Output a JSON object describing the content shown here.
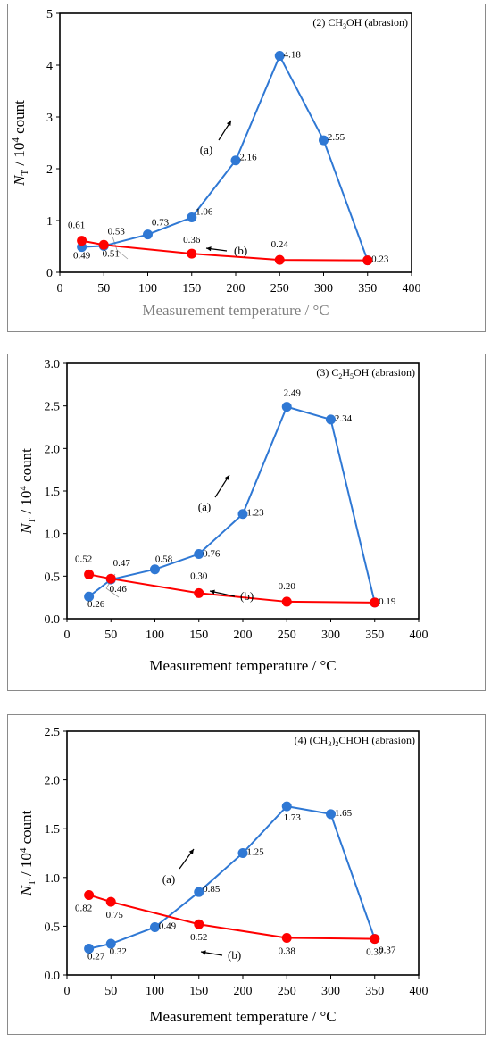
{
  "colors": {
    "series_a": "#2f78d4",
    "series_b": "#ff0000",
    "axis": "#000000",
    "xlabel": "#7f7f7f"
  },
  "chart_data": [
    {
      "type": "line",
      "title": "(2) CH3OH (abrasion)",
      "title_main": "(2) CH",
      "title_sub1": "3",
      "title_rest": "OH (abrasion)",
      "xlabel": "Measurement temperature / °C",
      "ylabel_main": "N",
      "ylabel_sub": "T",
      "ylabel_rest": "/ 10",
      "ylabel_sup": "4",
      "ylabel_end": " count",
      "xlim": [
        0,
        400
      ],
      "ylim": [
        0,
        5
      ],
      "xticks": [
        "0",
        "50",
        "100",
        "150",
        "200",
        "250",
        "300",
        "350",
        "400"
      ],
      "yticks": [
        "0",
        "1",
        "2",
        "3",
        "4",
        "5"
      ],
      "series": [
        {
          "name": "(a)",
          "x": [
            25,
            50,
            100,
            150,
            200,
            250,
            300,
            350
          ],
          "y": [
            0.49,
            0.51,
            0.73,
            1.06,
            2.16,
            4.18,
            2.55,
            0.23
          ],
          "labels": [
            "0.49",
            "0.51",
            "0.73",
            "1.06",
            "2.16",
            "4.18",
            "2.55",
            "0.23"
          ]
        },
        {
          "name": "(b)",
          "x": [
            25,
            50,
            150,
            250,
            350
          ],
          "y": [
            0.61,
            0.53,
            0.36,
            0.24,
            0.23
          ],
          "labels": [
            "0.61",
            "0.53",
            "0.36",
            "0.24",
            ""
          ]
        }
      ],
      "annotations": [
        "(a)",
        "(b)"
      ]
    },
    {
      "type": "line",
      "title": "(3) C2H5OH (abrasion)",
      "title_main": "(3) C",
      "title_sub1": "2",
      "title_mid": "H",
      "title_sub2": "5",
      "title_rest": "OH (abrasion)",
      "xlabel": "Measurement temperature / °C",
      "ylabel_main": "N",
      "ylabel_sub": "T",
      "ylabel_rest": "/ 10",
      "ylabel_sup": "4",
      "ylabel_end": " count",
      "xlim": [
        0,
        400
      ],
      "ylim": [
        0,
        3
      ],
      "xticks": [
        "0",
        "50",
        "100",
        "150",
        "200",
        "250",
        "300",
        "350",
        "400"
      ],
      "yticks": [
        "0.0",
        "0.5",
        "1.0",
        "1.5",
        "2.0",
        "2.5",
        "3.0"
      ],
      "series": [
        {
          "name": "(a)",
          "x": [
            25,
            50,
            100,
            150,
            200,
            250,
            300,
            350
          ],
          "y": [
            0.26,
            0.46,
            0.58,
            0.76,
            1.23,
            2.49,
            2.34,
            0.19
          ],
          "labels": [
            "0.26",
            "0.46",
            "0.58",
            "0.76",
            "1.23",
            "2.49",
            "2.34",
            "0.19"
          ]
        },
        {
          "name": "(b)",
          "x": [
            25,
            50,
            150,
            250,
            350
          ],
          "y": [
            0.52,
            0.47,
            0.3,
            0.2,
            0.19
          ],
          "labels": [
            "0.52",
            "0.47",
            "0.30",
            "0.20",
            ""
          ]
        }
      ],
      "annotations": [
        "(a)",
        "(b)"
      ]
    },
    {
      "type": "line",
      "title": "(4) (CH3)2CHOH (abrasion)",
      "title_main": "(4) (CH",
      "title_sub1": "3",
      "title_mid": ")",
      "title_sub2": "2",
      "title_rest": "CHOH (abrasion)",
      "xlabel": "Measurement temperature / °C",
      "ylabel_main": "N",
      "ylabel_sub": "T",
      "ylabel_rest": "/ 10",
      "ylabel_sup": "4",
      "ylabel_end": " count",
      "xlim": [
        0,
        400
      ],
      "ylim": [
        0,
        2.5
      ],
      "xticks": [
        "0",
        "50",
        "100",
        "150",
        "200",
        "250",
        "300",
        "350",
        "400"
      ],
      "yticks": [
        "0.0",
        "0.5",
        "1.0",
        "1.5",
        "2.0",
        "2.5"
      ],
      "series": [
        {
          "name": "(a)",
          "x": [
            25,
            50,
            100,
            150,
            200,
            250,
            300,
            350
          ],
          "y": [
            0.27,
            0.32,
            0.49,
            0.85,
            1.25,
            1.73,
            1.65,
            0.37
          ],
          "labels": [
            "0.27",
            "0.32",
            "0.49",
            "0.85",
            "1.25",
            "1.73",
            "1.65",
            "0.37"
          ]
        },
        {
          "name": "(b)",
          "x": [
            25,
            50,
            150,
            250,
            350
          ],
          "y": [
            0.82,
            0.75,
            0.52,
            0.38,
            0.37
          ],
          "labels": [
            "0.82",
            "0.75",
            "0.52",
            "0.38",
            "0.37"
          ]
        }
      ],
      "annotations": [
        "(a)",
        "(b)"
      ]
    }
  ]
}
